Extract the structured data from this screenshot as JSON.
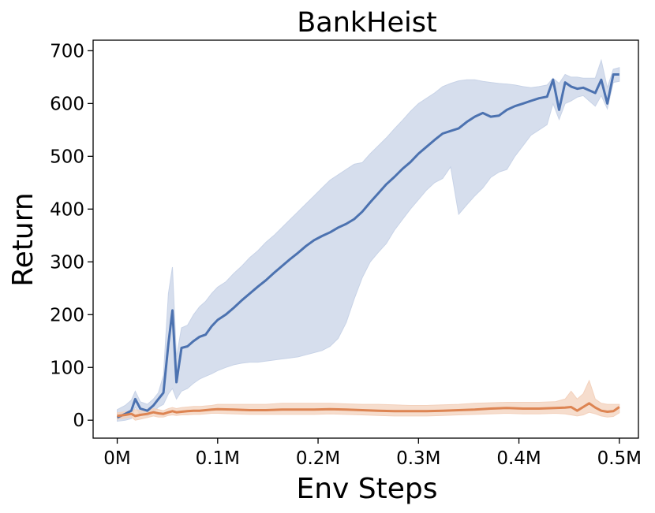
{
  "chart_data": {
    "type": "line",
    "title": "BankHeist",
    "xlabel": "Env Steps",
    "ylabel": "Return",
    "xlim": [
      -0.024,
      0.519
    ],
    "ylim": [
      -34,
      720
    ],
    "grid": false,
    "legend": "none",
    "x_ticks": [
      0,
      0.1,
      0.2,
      0.3,
      0.4,
      0.5
    ],
    "x_tick_labels": [
      "0M",
      "0.1M",
      "0.2M",
      "0.3M",
      "0.4M",
      "0.5M"
    ],
    "y_ticks": [
      0,
      100,
      200,
      300,
      400,
      500,
      600,
      700
    ],
    "y_tick_labels": [
      "0",
      "100",
      "200",
      "300",
      "400",
      "500",
      "600",
      "700"
    ],
    "series": [
      {
        "color": "#4c72b0",
        "band_color": "#c8d3e7",
        "x": [
          0.0,
          0.008,
          0.014,
          0.018,
          0.023,
          0.03,
          0.036,
          0.041,
          0.046,
          0.051,
          0.055,
          0.059,
          0.064,
          0.07,
          0.076,
          0.082,
          0.088,
          0.094,
          0.1,
          0.108,
          0.116,
          0.124,
          0.132,
          0.14,
          0.148,
          0.156,
          0.164,
          0.172,
          0.18,
          0.188,
          0.196,
          0.204,
          0.212,
          0.22,
          0.228,
          0.236,
          0.244,
          0.252,
          0.26,
          0.268,
          0.276,
          0.284,
          0.292,
          0.3,
          0.308,
          0.316,
          0.324,
          0.332,
          0.34,
          0.348,
          0.356,
          0.364,
          0.372,
          0.38,
          0.388,
          0.396,
          0.404,
          0.412,
          0.42,
          0.428,
          0.434,
          0.44,
          0.446,
          0.452,
          0.458,
          0.464,
          0.47,
          0.476,
          0.482,
          0.488,
          0.494,
          0.5
        ],
        "y": [
          5,
          12,
          18,
          40,
          22,
          18,
          28,
          40,
          52,
          145,
          208,
          72,
          137,
          140,
          150,
          158,
          162,
          178,
          190,
          200,
          213,
          227,
          240,
          253,
          265,
          279,
          292,
          305,
          317,
          330,
          341,
          349,
          356,
          365,
          372,
          381,
          395,
          413,
          430,
          447,
          461,
          476,
          489,
          505,
          518,
          531,
          543,
          548,
          553,
          565,
          575,
          582,
          575,
          577,
          588,
          595,
          600,
          605,
          610,
          613,
          645,
          588,
          640,
          632,
          628,
          630,
          625,
          620,
          645,
          600,
          655,
          655
        ],
        "y_upper": [
          20,
          28,
          38,
          55,
          35,
          30,
          40,
          52,
          85,
          240,
          290,
          120,
          175,
          180,
          200,
          215,
          225,
          240,
          252,
          262,
          278,
          292,
          308,
          321,
          337,
          350,
          365,
          380,
          395,
          410,
          425,
          440,
          455,
          465,
          475,
          485,
          488,
          505,
          520,
          535,
          552,
          568,
          585,
          600,
          610,
          620,
          632,
          638,
          643,
          645,
          645,
          642,
          640,
          638,
          637,
          635,
          632,
          630,
          632,
          635,
          648,
          638,
          655,
          650,
          650,
          648,
          648,
          648,
          682,
          630,
          665,
          668
        ],
        "y_lower": [
          -2,
          0,
          3,
          25,
          10,
          8,
          15,
          25,
          30,
          50,
          60,
          40,
          55,
          60,
          70,
          78,
          83,
          88,
          94,
          100,
          105,
          108,
          110,
          110,
          112,
          114,
          116,
          118,
          120,
          124,
          128,
          132,
          140,
          155,
          185,
          230,
          270,
          300,
          318,
          335,
          360,
          380,
          400,
          418,
          436,
          450,
          458,
          480,
          390,
          408,
          425,
          440,
          460,
          470,
          475,
          500,
          520,
          540,
          550,
          560,
          600,
          570,
          600,
          605,
          612,
          615,
          605,
          595,
          615,
          590,
          640,
          642
        ]
      },
      {
        "color": "#dd8452",
        "band_color": "#f3d1bc",
        "x": [
          0.0,
          0.008,
          0.014,
          0.018,
          0.023,
          0.03,
          0.036,
          0.041,
          0.046,
          0.051,
          0.055,
          0.059,
          0.064,
          0.07,
          0.076,
          0.082,
          0.088,
          0.094,
          0.1,
          0.116,
          0.132,
          0.148,
          0.164,
          0.18,
          0.196,
          0.212,
          0.228,
          0.244,
          0.26,
          0.276,
          0.292,
          0.308,
          0.324,
          0.34,
          0.356,
          0.372,
          0.388,
          0.404,
          0.42,
          0.436,
          0.446,
          0.452,
          0.458,
          0.464,
          0.47,
          0.476,
          0.482,
          0.488,
          0.494,
          0.5
        ],
        "y": [
          8,
          10,
          12,
          8,
          10,
          12,
          15,
          13,
          12,
          15,
          17,
          15,
          16,
          17,
          18,
          18,
          19,
          20,
          21,
          20,
          19,
          19,
          20,
          20,
          20,
          21,
          20,
          19,
          18,
          17,
          17,
          17,
          18,
          19,
          20,
          22,
          23,
          22,
          22,
          23,
          24,
          25,
          18,
          25,
          32,
          24,
          18,
          16,
          17,
          25
        ],
        "y_upper": [
          14,
          16,
          18,
          20,
          18,
          18,
          22,
          20,
          18,
          22,
          24,
          22,
          24,
          25,
          26,
          26,
          27,
          28,
          30,
          30,
          30,
          30,
          32,
          32,
          32,
          32,
          31,
          30,
          30,
          29,
          28,
          28,
          29,
          30,
          32,
          33,
          34,
          34,
          34,
          35,
          40,
          55,
          40,
          50,
          75,
          40,
          32,
          30,
          30,
          30
        ],
        "y_lower": [
          2,
          4,
          6,
          0,
          2,
          5,
          8,
          6,
          6,
          9,
          10,
          9,
          10,
          10,
          11,
          11,
          12,
          13,
          13,
          12,
          11,
          11,
          11,
          11,
          11,
          12,
          11,
          10,
          9,
          8,
          8,
          8,
          9,
          10,
          11,
          12,
          13,
          12,
          12,
          13,
          12,
          10,
          8,
          10,
          15,
          12,
          8,
          6,
          7,
          14
        ]
      }
    ]
  }
}
